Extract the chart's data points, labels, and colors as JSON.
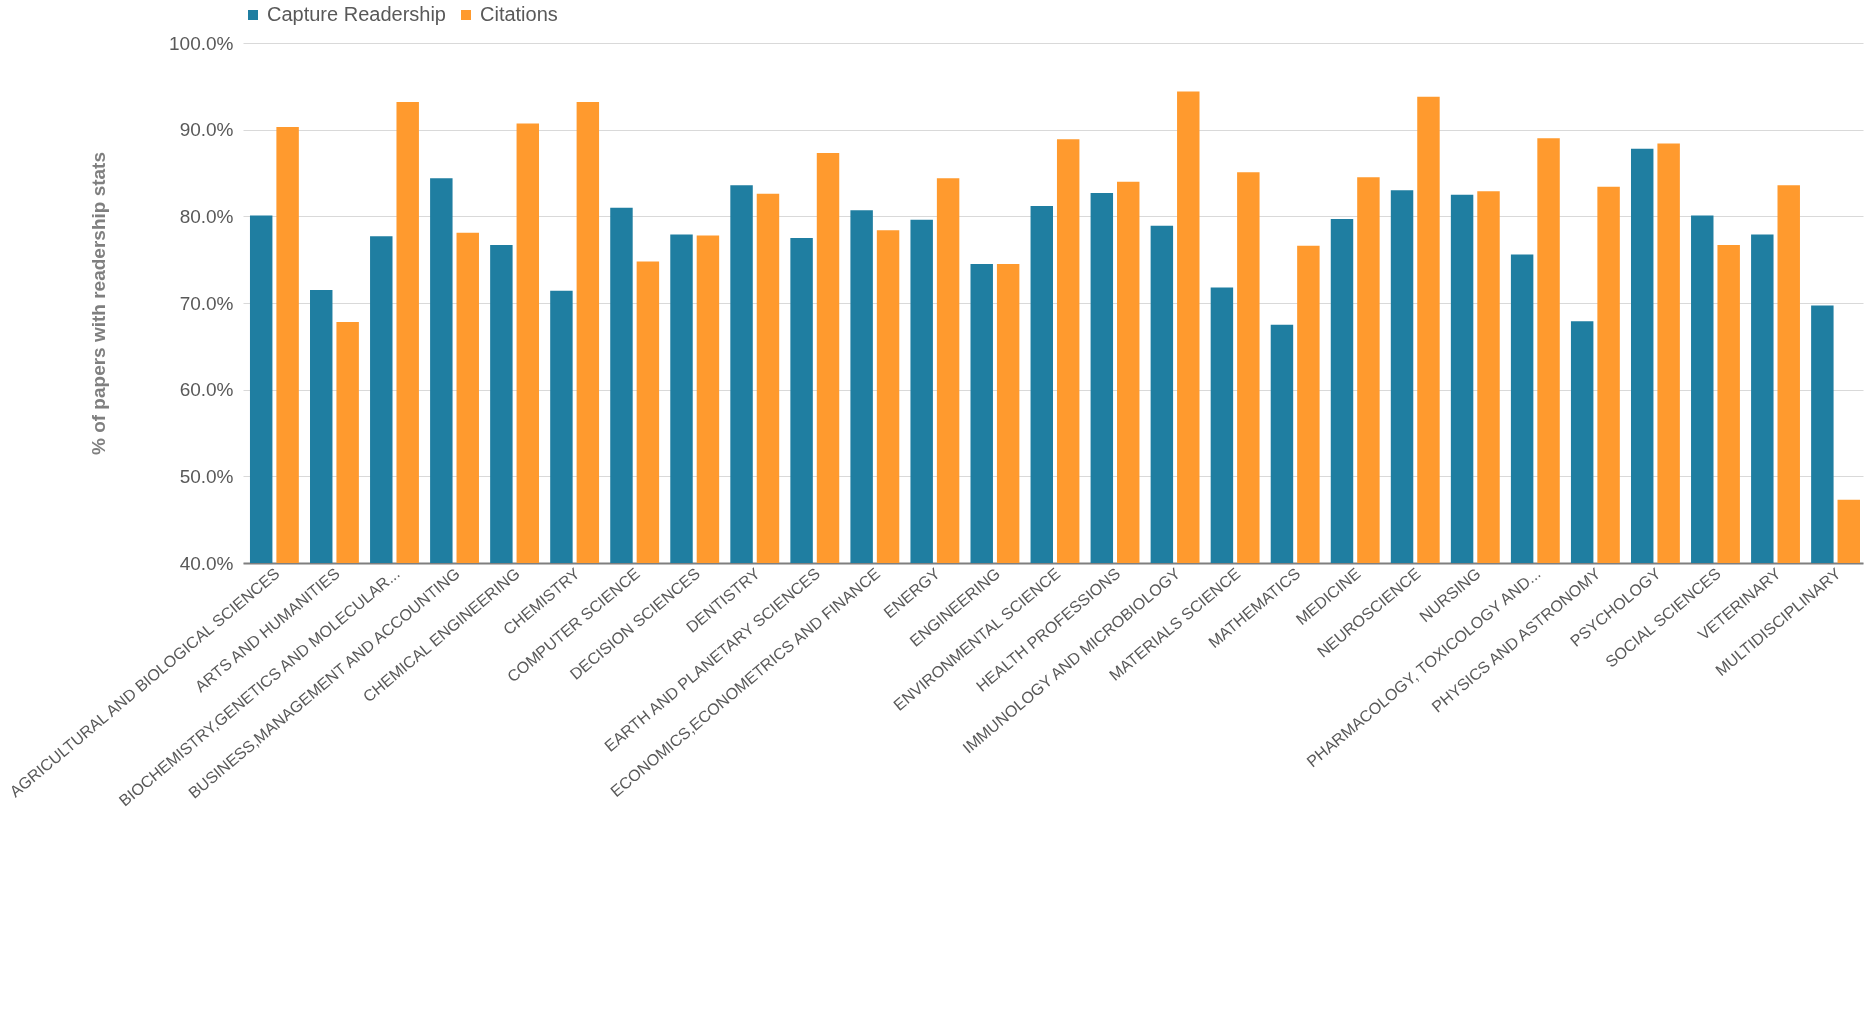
{
  "chart_data": {
    "type": "bar",
    "ylabel": "% of papers with readership stats",
    "categories": [
      "AGRICULTURAL AND BIOLOGICAL SCIENCES",
      "ARTS AND HUMANITIES",
      "BIOCHEMISTRY,GENETICS AND MOLECULAR...",
      "BUSINESS,MANAGEMENT AND ACCOUNTING",
      "CHEMICAL ENGINEERING",
      "CHEMISTRY",
      "COMPUTER SCIENCE",
      "DECISION SCIENCES",
      "DENTISTRY",
      "EARTH AND PLANETARY SCIENCES",
      "ECONOMICS,ECONOMETRICS AND FINANCE",
      "ENERGY",
      "ENGINEERING",
      "ENVIRONMENTAL SCIENCE",
      "HEALTH PROFESSIONS",
      "IMMUNOLOGY AND MICROBIOLOGY",
      "MATERIALS SCIENCE",
      "MATHEMATICS",
      "MEDICINE",
      "NEUROSCIENCE",
      "NURSING",
      "PHARMACOLOGY, TOXICOLOGY AND...",
      "PHYSICS AND ASTRONOMY",
      "PSYCHOLOGY",
      "SOCIAL SCIENCES",
      "VETERINARY",
      "MULTIDISCIPLINARY"
    ],
    "series": [
      {
        "name": "Capture Readership",
        "color": "#1f7ea1",
        "values": [
          80.1,
          71.5,
          77.7,
          84.4,
          76.7,
          71.4,
          81.0,
          77.9,
          83.6,
          77.5,
          80.7,
          79.6,
          74.5,
          81.2,
          82.7,
          78.9,
          71.8,
          67.5,
          79.7,
          83.0,
          82.5,
          75.6,
          67.9,
          87.8,
          80.1,
          77.9,
          69.7
        ]
      },
      {
        "name": "Citations",
        "color": "#ff9a2e",
        "values": [
          90.3,
          67.8,
          93.2,
          78.1,
          90.7,
          93.2,
          74.8,
          77.8,
          82.6,
          87.3,
          78.4,
          84.4,
          74.5,
          88.9,
          84.0,
          94.4,
          85.1,
          76.6,
          84.5,
          93.8,
          82.9,
          89.0,
          83.4,
          88.4,
          76.7,
          83.6,
          47.3
        ]
      }
    ],
    "ylim": [
      40,
      100
    ],
    "yticks": [
      {
        "value": 40,
        "label": "40.0%"
      },
      {
        "value": 50,
        "label": "50.0%"
      },
      {
        "value": 60,
        "label": "60.0%"
      },
      {
        "value": 70,
        "label": "70.0%"
      },
      {
        "value": 80,
        "label": "80.0%"
      },
      {
        "value": 90,
        "label": "90.0%"
      },
      {
        "value": 100,
        "label": "100.0%"
      }
    ],
    "grid": "y",
    "legend": "top"
  }
}
